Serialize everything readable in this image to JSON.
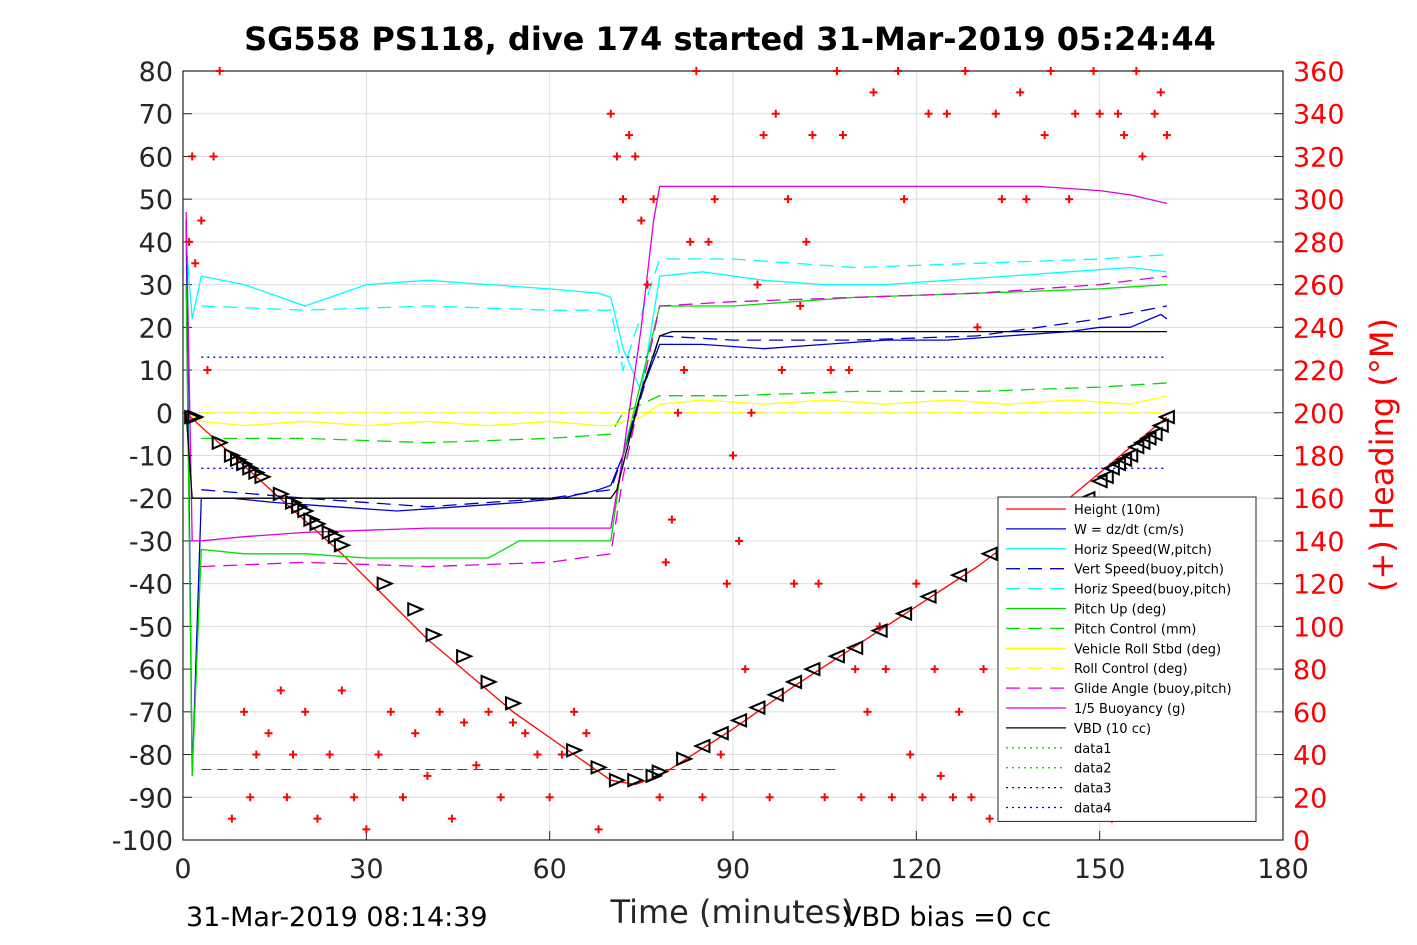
{
  "chart_data": {
    "type": "line",
    "title": "SG558 PS118, dive 174 started 31-Mar-2019 05:24:44",
    "xlabel": "Time (minutes)",
    "ylabel_right": "(+) Heading (°M)",
    "xlim": [
      0,
      180
    ],
    "ylim": [
      -100,
      80
    ],
    "ylim_right": [
      0,
      360
    ],
    "xticks": [
      0,
      30,
      60,
      90,
      120,
      150,
      180
    ],
    "yticks": [
      -100,
      -90,
      -80,
      -70,
      -60,
      -50,
      -40,
      -30,
      -20,
      -10,
      0,
      10,
      20,
      30,
      40,
      50,
      60,
      70,
      80
    ],
    "yticks_right": [
      0,
      20,
      40,
      60,
      80,
      100,
      120,
      140,
      160,
      180,
      200,
      220,
      240,
      260,
      280,
      300,
      320,
      340,
      360
    ],
    "grid": true,
    "legend_position": "bottom-right",
    "footer_left": "31-Mar-2019 08:14:39",
    "footer_right": "VBD bias =0 cc",
    "series": [
      {
        "name": "Height (10m)",
        "color": "#ff0000",
        "style": "solid",
        "x": [
          0.5,
          2,
          12,
          26,
          40,
          54,
          64,
          70,
          74,
          78,
          90,
          100,
          115,
          130,
          145,
          161
        ],
        "y": [
          0,
          -2,
          -15,
          -33,
          -53,
          -70,
          -80,
          -86,
          -87,
          -85,
          -74,
          -64,
          -50,
          -36,
          -20,
          -1
        ]
      },
      {
        "name": "W = dz/dt (cm/s)",
        "color": "#0000cd",
        "style": "solid",
        "x": [
          0.5,
          1.5,
          3,
          8,
          15,
          25,
          35,
          45,
          55,
          62,
          68,
          70,
          72,
          75,
          78,
          85,
          95,
          105,
          115,
          125,
          135,
          145,
          150,
          155,
          160,
          161
        ],
        "y": [
          45,
          -85,
          -20,
          -20,
          -21,
          -22,
          -23,
          -22,
          -21,
          -20,
          -18,
          -17,
          -10,
          5,
          16,
          16,
          15,
          16,
          17,
          17,
          18,
          19,
          20,
          20,
          23,
          22
        ]
      },
      {
        "name": "Horiz Speed(W,pitch)",
        "color": "#00ffff",
        "style": "solid",
        "x": [
          0.5,
          1.5,
          3,
          10,
          20,
          30,
          40,
          50,
          60,
          68,
          70,
          72,
          75,
          78,
          85,
          95,
          105,
          115,
          125,
          135,
          145,
          155,
          161
        ],
        "y": [
          40,
          22,
          32,
          30,
          25,
          30,
          31,
          30,
          29,
          28,
          27,
          15,
          5,
          32,
          33,
          31,
          30,
          30,
          31,
          32,
          33,
          34,
          33
        ]
      },
      {
        "name": "Vert Speed(buoy,pitch)",
        "color": "#0000cd",
        "style": "dashed",
        "x": [
          3,
          20,
          40,
          60,
          70,
          72,
          78,
          90,
          110,
          130,
          150,
          161
        ],
        "y": [
          -18,
          -20,
          -22,
          -20,
          -18,
          -10,
          18,
          17,
          17,
          18,
          22,
          25
        ]
      },
      {
        "name": "Horiz Speed(buoy,pitch)",
        "color": "#00ffff",
        "style": "dashed",
        "x": [
          3,
          20,
          40,
          60,
          70,
          72,
          78,
          90,
          110,
          130,
          150,
          161
        ],
        "y": [
          25,
          24,
          25,
          24,
          24,
          10,
          36,
          36,
          34,
          35,
          36,
          37
        ]
      },
      {
        "name": "Pitch Up (deg)",
        "color": "#00dd00",
        "style": "solid",
        "x": [
          0.5,
          1.5,
          3,
          10,
          20,
          30,
          40,
          50,
          55,
          60,
          70,
          72,
          78,
          90,
          110,
          130,
          150,
          161
        ],
        "y": [
          30,
          -85,
          -32,
          -33,
          -33,
          -34,
          -34,
          -34,
          -30,
          -30,
          -30,
          -10,
          25,
          25,
          27,
          28,
          29,
          30
        ]
      },
      {
        "name": "Pitch Control (mm)",
        "color": "#00dd00",
        "style": "dashed",
        "x": [
          3,
          20,
          40,
          60,
          70,
          72,
          78,
          90,
          110,
          130,
          150,
          161
        ],
        "y": [
          -6,
          -6,
          -7,
          -6,
          -5,
          0,
          4,
          4,
          5,
          5,
          6,
          7
        ]
      },
      {
        "name": "Vehicle Roll Stbd (deg)",
        "color": "#ffff00",
        "style": "solid",
        "x": [
          0.5,
          3,
          10,
          20,
          30,
          40,
          50,
          60,
          68,
          70,
          75,
          78,
          85,
          95,
          105,
          115,
          125,
          135,
          145,
          155,
          161
        ],
        "y": [
          0,
          -2,
          -3,
          -2,
          -3,
          -2,
          -3,
          -2,
          -3,
          -3,
          -1,
          2,
          3,
          2,
          3,
          2,
          3,
          2,
          3,
          2,
          4
        ]
      },
      {
        "name": "Roll Control (deg)",
        "color": "#ffff00",
        "style": "dashed",
        "x": [
          3,
          20,
          40,
          60,
          70,
          72,
          78,
          90,
          110,
          130,
          150,
          161
        ],
        "y": [
          0,
          0,
          0,
          0,
          0,
          0,
          0,
          0,
          0,
          0,
          0,
          0
        ]
      },
      {
        "name": "Glide Angle (buoy,pitch)",
        "color": "#dd00dd",
        "style": "dashed",
        "x": [
          3,
          20,
          40,
          60,
          70,
          72,
          78,
          90,
          110,
          130,
          150,
          161
        ],
        "y": [
          -36,
          -35,
          -36,
          -35,
          -33,
          -15,
          25,
          26,
          27,
          28,
          30,
          32
        ]
      },
      {
        "name": "1/5 Buoyancy (g)",
        "color": "#dd00dd",
        "style": "solid",
        "x": [
          0.5,
          1.5,
          3,
          10,
          20,
          40,
          60,
          70,
          72,
          75,
          77,
          78,
          90,
          100,
          120,
          140,
          150,
          155,
          161
        ],
        "y": [
          47,
          -30,
          -30,
          -29,
          -28,
          -27,
          -27,
          -27,
          -10,
          20,
          45,
          53,
          53,
          53,
          53,
          53,
          52,
          51,
          49
        ]
      },
      {
        "name": "VBD (10 cc)",
        "color": "#000000",
        "style": "solid",
        "x": [
          0.5,
          1.5,
          3,
          70,
          71,
          75,
          78,
          80,
          161
        ],
        "y": [
          0,
          -20,
          -20,
          -20,
          -18,
          5,
          18,
          19,
          19
        ]
      },
      {
        "name": "data1",
        "color": "#00dd00",
        "style": "dotted",
        "x": [],
        "y": []
      },
      {
        "name": "data2",
        "color": "#00dd00",
        "style": "dotted",
        "x": [],
        "y": []
      },
      {
        "name": "data3",
        "color": "#0000cd",
        "style": "dotted",
        "x": [
          3,
          161
        ],
        "y": [
          13,
          13
        ]
      },
      {
        "name": "data4",
        "color": "#0000cd",
        "style": "dotted",
        "x": [
          3,
          161
        ],
        "y": [
          -13,
          -13
        ]
      }
    ],
    "heading": {
      "color": "#ff0000",
      "marker": "+",
      "axis": "right",
      "x": [
        1,
        1.5,
        2,
        3,
        4,
        5,
        6,
        8,
        10,
        11,
        12,
        14,
        16,
        17,
        18,
        20,
        22,
        24,
        26,
        28,
        30,
        32,
        34,
        36,
        38,
        40,
        42,
        44,
        46,
        48,
        50,
        52,
        54,
        56,
        58,
        60,
        62,
        64,
        66,
        68,
        70,
        71,
        72,
        73,
        74,
        75,
        76,
        77,
        78,
        79,
        80,
        81,
        82,
        83,
        84,
        85,
        86,
        87,
        88,
        89,
        90,
        91,
        92,
        93,
        94,
        95,
        96,
        97,
        98,
        99,
        100,
        101,
        102,
        103,
        104,
        105,
        106,
        107,
        108,
        109,
        110,
        111,
        112,
        113,
        114,
        115,
        116,
        117,
        118,
        119,
        120,
        121,
        122,
        123,
        124,
        125,
        126,
        127,
        128,
        129,
        130,
        131,
        132,
        133,
        134,
        135,
        136,
        137,
        138,
        139,
        140,
        141,
        142,
        143,
        144,
        145,
        146,
        147,
        148,
        149,
        150,
        151,
        152,
        153,
        154,
        155,
        156,
        157,
        158,
        159,
        160,
        161
      ],
      "y": [
        280,
        320,
        270,
        290,
        220,
        320,
        360,
        10,
        60,
        20,
        40,
        50,
        70,
        20,
        40,
        60,
        10,
        40,
        70,
        20,
        5,
        40,
        60,
        20,
        50,
        30,
        60,
        10,
        55,
        35,
        60,
        20,
        55,
        50,
        40,
        20,
        40,
        60,
        50,
        5,
        340,
        320,
        300,
        330,
        320,
        290,
        260,
        300,
        20,
        130,
        150,
        200,
        220,
        280,
        360,
        20,
        280,
        300,
        40,
        120,
        180,
        140,
        80,
        200,
        260,
        330,
        20,
        340,
        220,
        300,
        120,
        250,
        280,
        330,
        120,
        20,
        220,
        360,
        330,
        220,
        80,
        20,
        60,
        350,
        100,
        80,
        20,
        360,
        300,
        40,
        120,
        20,
        340,
        80,
        30,
        340,
        20,
        60,
        360,
        20,
        240,
        80,
        10,
        340,
        300,
        40,
        20,
        350,
        300,
        80,
        20,
        330,
        360,
        70,
        20,
        300,
        340,
        80,
        20,
        360,
        340,
        80,
        10,
        340,
        330,
        20,
        360,
        320,
        80,
        340,
        350,
        330
      ]
    },
    "reference_line": {
      "color": "#ff0000",
      "style": "dashed",
      "x": [
        3,
        107
      ],
      "y": [
        -83.5,
        -83.5
      ]
    },
    "triangle_markers": {
      "color": "#000000",
      "x": [
        1.5,
        2,
        6,
        8,
        9,
        10,
        11,
        12,
        13,
        16,
        18,
        19,
        20,
        21,
        22,
        24,
        25,
        26,
        33,
        38,
        41,
        46,
        50,
        54,
        64,
        68,
        71,
        74,
        77,
        78,
        82,
        85,
        88,
        91,
        94,
        97,
        100,
        103,
        107,
        110,
        114,
        118,
        122,
        127,
        132,
        137,
        141,
        144,
        146,
        148,
        150,
        151,
        152,
        153,
        154,
        155,
        156,
        157,
        158,
        159,
        160,
        161
      ],
      "y": [
        -1,
        -1,
        -7,
        -10,
        -11,
        -12,
        -13,
        -14,
        -15,
        -19,
        -21,
        -22,
        -23,
        -25,
        -26,
        -28,
        -29,
        -31,
        -40,
        -46,
        -52,
        -57,
        -63,
        -68,
        -79,
        -83,
        -86,
        -86,
        -85,
        -84,
        -81,
        -78,
        -75,
        -72,
        -69,
        -66,
        -63,
        -60,
        -57,
        -55,
        -51,
        -47,
        -43,
        -38,
        -33,
        -29,
        -26,
        -24,
        -22,
        -20,
        -16,
        -15,
        -13,
        -12,
        -11,
        -10,
        -8,
        -7,
        -6,
        -5,
        -3,
        -1
      ]
    }
  }
}
